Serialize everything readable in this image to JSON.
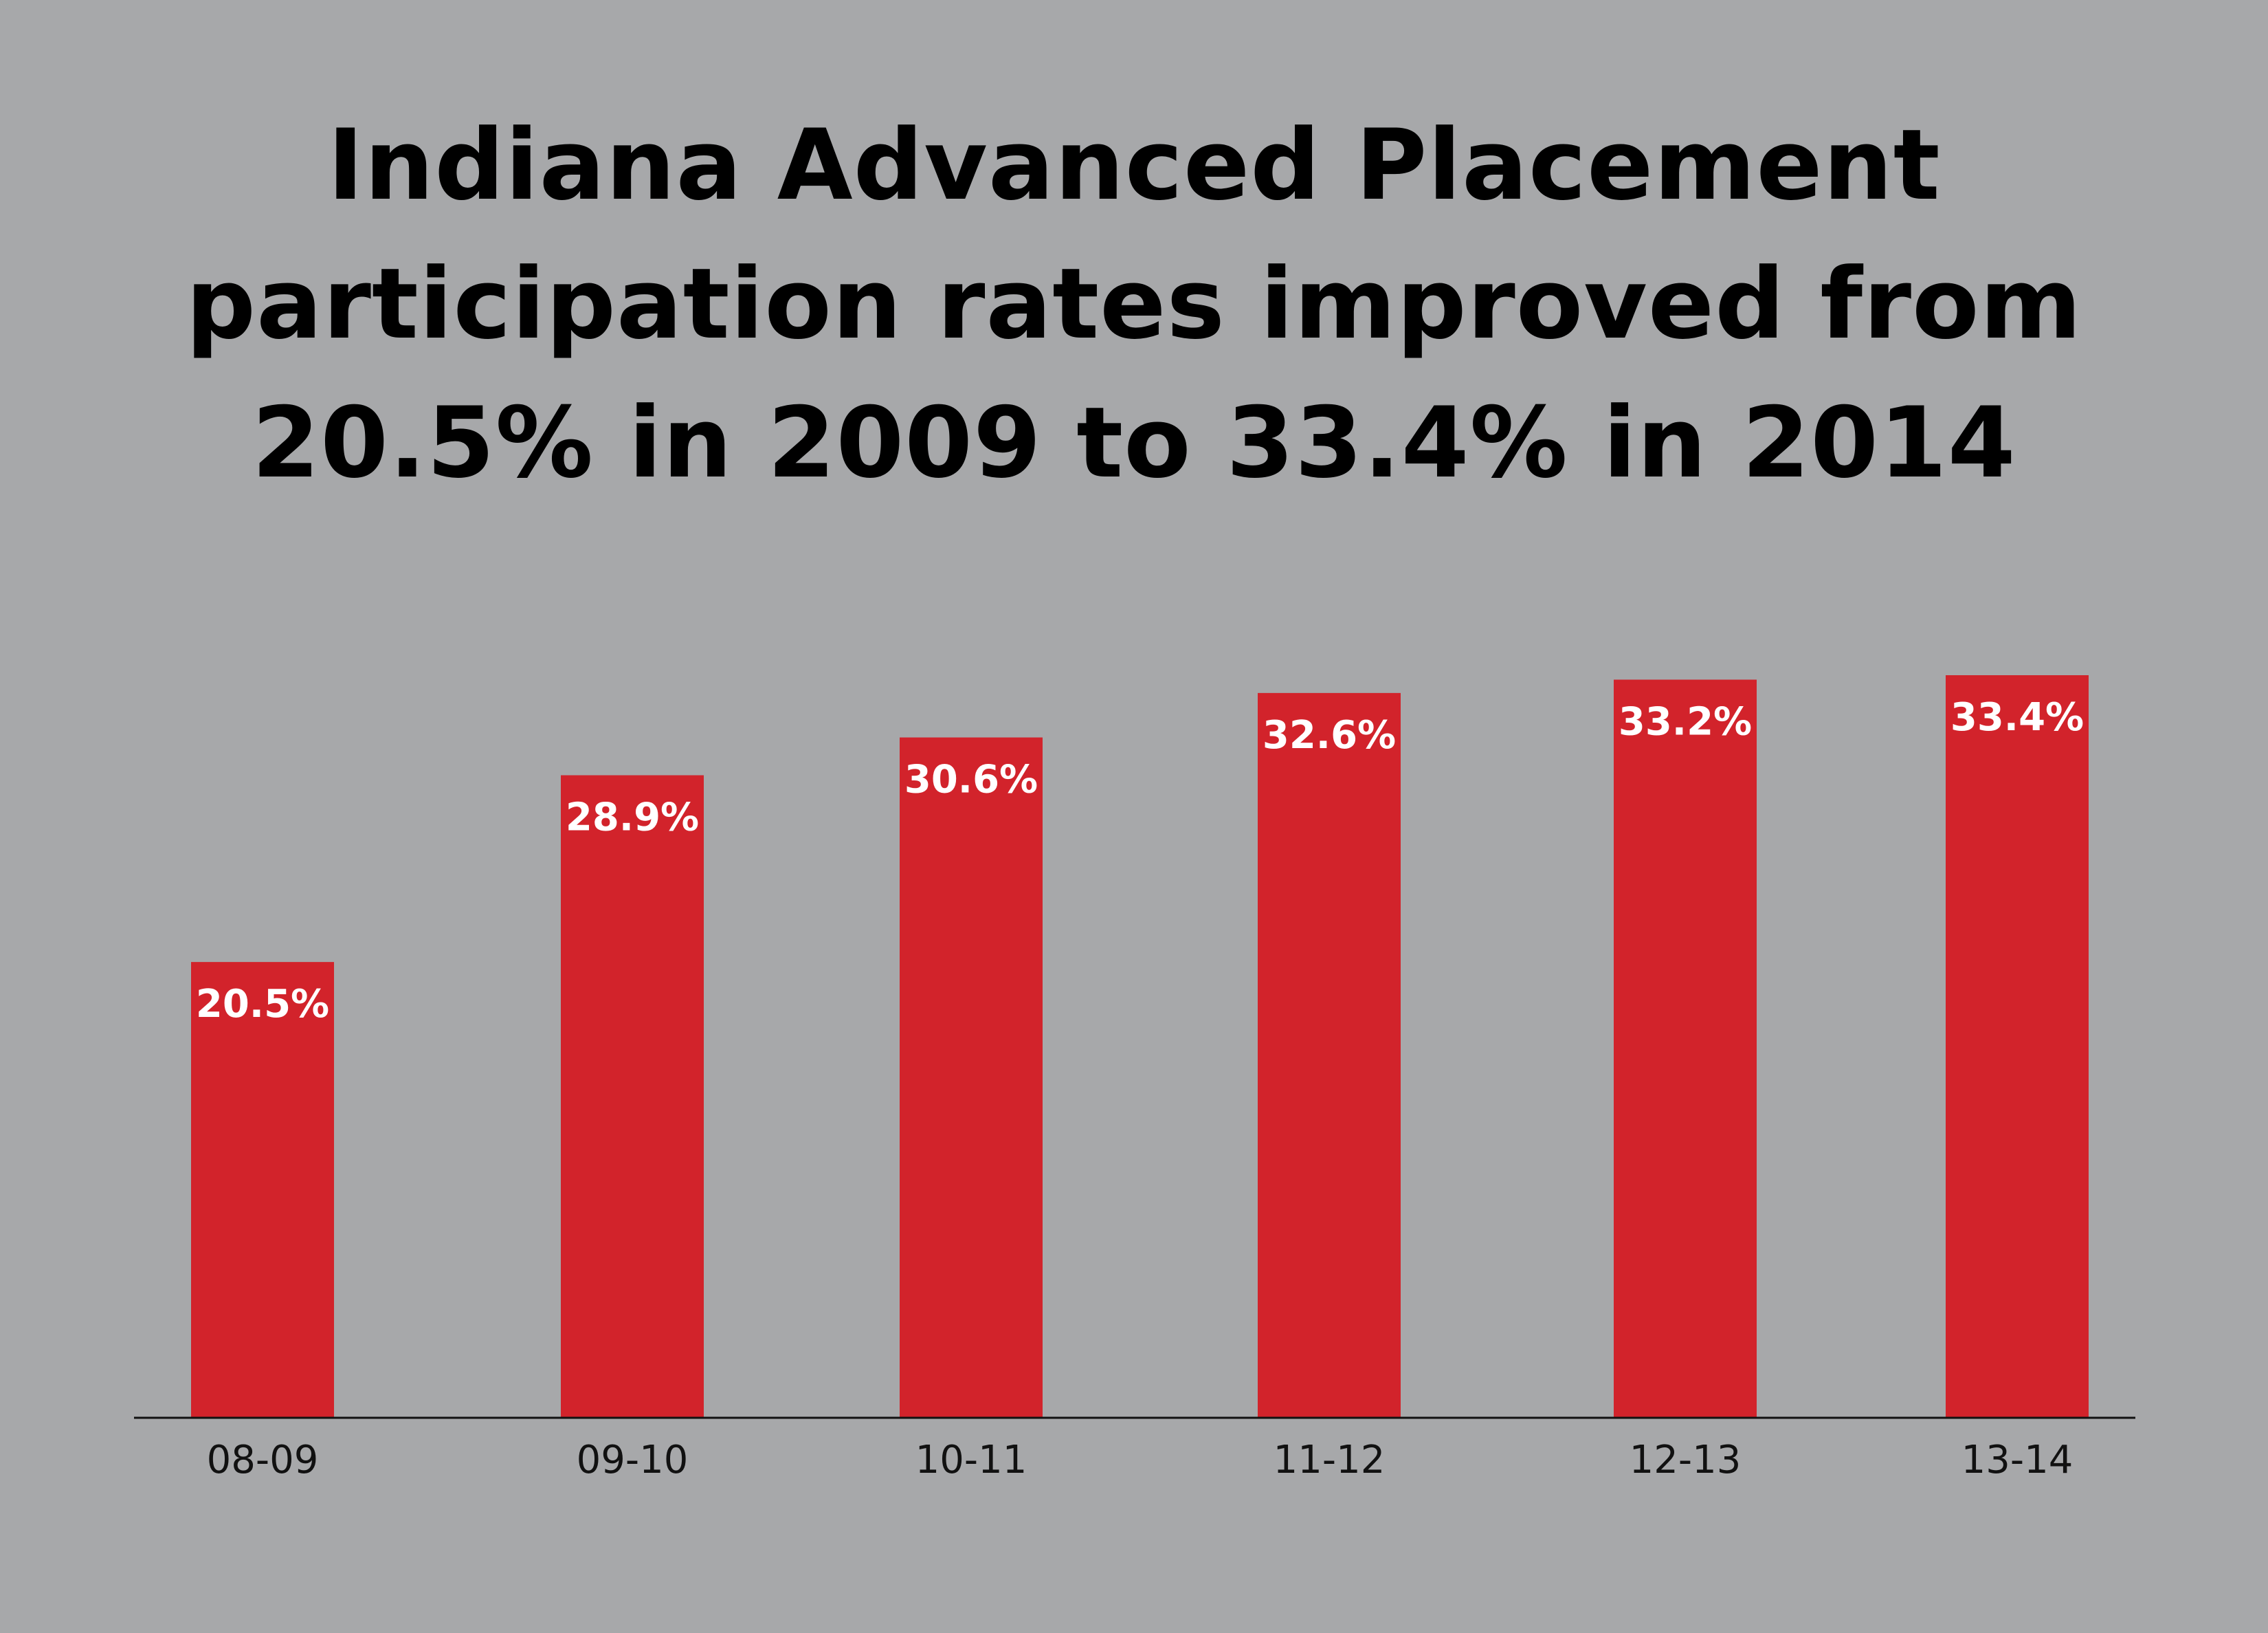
{
  "chart_data": {
    "type": "bar",
    "title_lines": [
      "Indiana Advanced Placement",
      "participation rates improved from",
      "20.5% in 2009 to 33.4% in 2014"
    ],
    "categories": [
      "08-09",
      "09-10",
      "10-11",
      "11-12",
      "12-13",
      "13-14"
    ],
    "values": [
      20.5,
      28.9,
      30.6,
      32.6,
      33.2,
      33.4
    ],
    "data_labels": [
      "20.5%",
      "28.9%",
      "30.6%",
      "32.6%",
      "33.2%",
      "33.4%"
    ],
    "xlabel": "",
    "ylabel": "",
    "grid": false,
    "legend": "none",
    "colors": {
      "background": "#a7a8aa",
      "bar": "#d2232b",
      "bar_label": "#ffffff",
      "axis": "#111111"
    }
  }
}
